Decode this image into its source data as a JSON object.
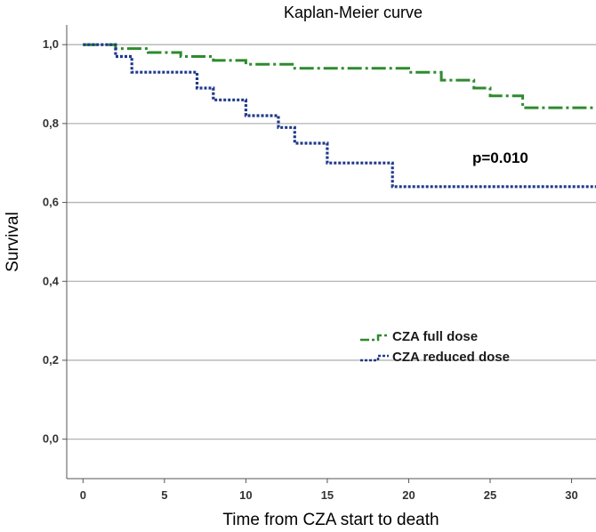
{
  "chart_data": {
    "type": "line",
    "subtype": "kaplan-meier step",
    "title": "Kaplan-Meier curve",
    "xlabel": "Time from CZA start to death",
    "ylabel": "Survival",
    "xlim": [
      -1,
      31.5
    ],
    "ylim": [
      -0.1,
      1.05
    ],
    "x_ticks": [
      0,
      5,
      10,
      15,
      20,
      25,
      30
    ],
    "x_tick_labels": [
      "0",
      "5",
      "10",
      "15",
      "20",
      "25",
      "30"
    ],
    "y_ticks": [
      0.0,
      0.2,
      0.4,
      0.6,
      0.8,
      1.0
    ],
    "y_tick_labels": [
      "0,0",
      "0,2",
      "0,4",
      "0,6",
      "0,8",
      "1,0"
    ],
    "grid": "horizontal",
    "annotation": "p=0.010",
    "legend_position": "center-right",
    "series": [
      {
        "name": "CZA full dose",
        "color": "#2e8b2e",
        "line_style": "dash-dot",
        "points": [
          [
            0,
            1.0
          ],
          [
            2,
            1.0
          ],
          [
            2,
            0.99
          ],
          [
            4,
            0.99
          ],
          [
            4,
            0.98
          ],
          [
            6,
            0.98
          ],
          [
            6,
            0.97
          ],
          [
            8,
            0.97
          ],
          [
            8,
            0.96
          ],
          [
            10,
            0.96
          ],
          [
            10,
            0.95
          ],
          [
            13,
            0.95
          ],
          [
            13,
            0.94
          ],
          [
            20,
            0.94
          ],
          [
            20,
            0.93
          ],
          [
            22,
            0.93
          ],
          [
            22,
            0.91
          ],
          [
            24,
            0.91
          ],
          [
            24,
            0.89
          ],
          [
            25,
            0.89
          ],
          [
            25,
            0.87
          ],
          [
            27,
            0.87
          ],
          [
            27,
            0.84
          ],
          [
            31.5,
            0.84
          ]
        ]
      },
      {
        "name": "CZA reduced dose",
        "color": "#1f3a8a",
        "line_style": "dotted",
        "points": [
          [
            0,
            1.0
          ],
          [
            2,
            1.0
          ],
          [
            2,
            0.97
          ],
          [
            3,
            0.97
          ],
          [
            3,
            0.93
          ],
          [
            7,
            0.93
          ],
          [
            7,
            0.89
          ],
          [
            8,
            0.89
          ],
          [
            8,
            0.86
          ],
          [
            10,
            0.86
          ],
          [
            10,
            0.82
          ],
          [
            12,
            0.82
          ],
          [
            12,
            0.79
          ],
          [
            13,
            0.79
          ],
          [
            13,
            0.75
          ],
          [
            15,
            0.75
          ],
          [
            15,
            0.7
          ],
          [
            19,
            0.7
          ],
          [
            19,
            0.64
          ],
          [
            31.5,
            0.64
          ]
        ]
      }
    ]
  }
}
